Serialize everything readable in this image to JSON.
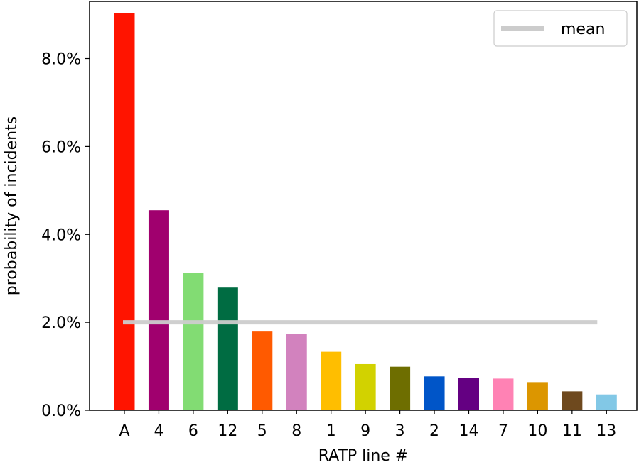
{
  "chart_data": {
    "type": "bar",
    "xlabel": "RATP line #",
    "ylabel": "probability of incidents",
    "ylim": [
      0,
      9.3
    ],
    "yticks": [
      0,
      2,
      4,
      6,
      8
    ],
    "ytick_format": "{v}.0%",
    "grid": false,
    "legend": {
      "placement": "top-right",
      "entries": [
        "mean"
      ]
    },
    "mean": 2.0,
    "mean_color": "#cccccc",
    "categories": [
      "A",
      "4",
      "6",
      "12",
      "5",
      "8",
      "1",
      "9",
      "3",
      "2",
      "14",
      "7",
      "10",
      "11",
      "13"
    ],
    "values": [
      9.03,
      4.55,
      3.13,
      2.79,
      1.79,
      1.74,
      1.33,
      1.05,
      0.99,
      0.77,
      0.73,
      0.72,
      0.64,
      0.43,
      0.36
    ],
    "colors": [
      "#ff1400",
      "#a0006e",
      "#82dc73",
      "#006c42",
      "#ff5a00",
      "#d282be",
      "#ffbe00",
      "#d2d200",
      "#6e6e00",
      "#0055c8",
      "#640082",
      "#ff82b4",
      "#dc9600",
      "#6e491e",
      "#82c8e6"
    ]
  }
}
